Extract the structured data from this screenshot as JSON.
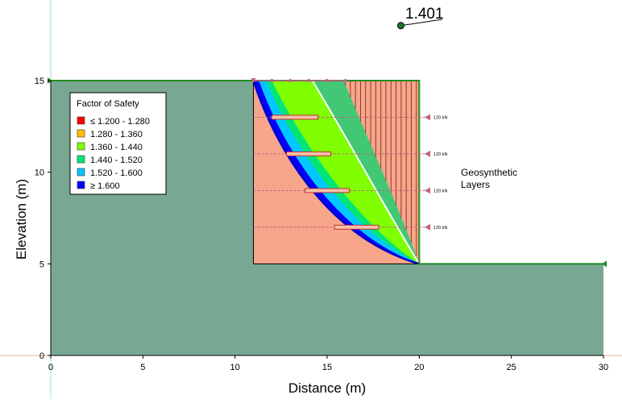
{
  "chart_data": {
    "type": "slope-stability",
    "title": "",
    "xlabel": "Distance (m)",
    "ylabel": "Elevation (m)",
    "xlim": [
      0,
      30
    ],
    "ylim": [
      0,
      15
    ],
    "xticks": [
      0,
      5,
      10,
      15,
      20,
      25,
      30
    ],
    "yticks": [
      0,
      5,
      10,
      15
    ],
    "critical_fos": {
      "label": "1.401",
      "center": [
        19,
        18
      ]
    },
    "ground_profile": [
      [
        0,
        0
      ],
      [
        0,
        15
      ],
      [
        20,
        15
      ],
      [
        20,
        5
      ],
      [
        30,
        5
      ],
      [
        30,
        0
      ]
    ],
    "wedge_region": {
      "x_range": [
        11,
        20
      ],
      "y_range": [
        5,
        15
      ]
    },
    "legend": {
      "title": "Factor of Safety",
      "entries": [
        {
          "label": "≤ 1.200 - 1.280",
          "color": "#ff0000"
        },
        {
          "label": "1.280 - 1.360",
          "color": "#ffbf00"
        },
        {
          "label": "1.360 - 1.440",
          "color": "#7fff00"
        },
        {
          "label": "1.440 - 1.520",
          "color": "#00e676"
        },
        {
          "label": "1.520 - 1.600",
          "color": "#00c8ff"
        },
        {
          "label": "≥ 1.600",
          "color": "#0000ff"
        }
      ]
    },
    "reinforcement": {
      "label": "Geosynthetic Layers",
      "label_lines": [
        "Geosynthetic",
        "Layers"
      ],
      "layers": [
        {
          "elevation": 13,
          "load": "120 kN",
          "anchor": [
            12,
            14.5
          ]
        },
        {
          "elevation": 11,
          "load": "120 kN",
          "anchor": [
            12.8,
            15.2
          ]
        },
        {
          "elevation": 9,
          "load": "120 kN",
          "anchor": [
            13.8,
            16.2
          ]
        },
        {
          "elevation": 7,
          "load": "120 kN",
          "anchor": [
            15.4,
            17.8
          ]
        }
      ]
    },
    "surcharge_points": [
      11,
      12,
      13,
      14,
      15,
      16
    ]
  },
  "colors": {
    "soil": "#78a892",
    "wedge_soil": "#f7a68b",
    "boundary": "#228b22",
    "surface_white": "#ffffff",
    "hatch": "#8b3a2a",
    "reinforcement": "#c06080",
    "axis_line": "#000000"
  }
}
